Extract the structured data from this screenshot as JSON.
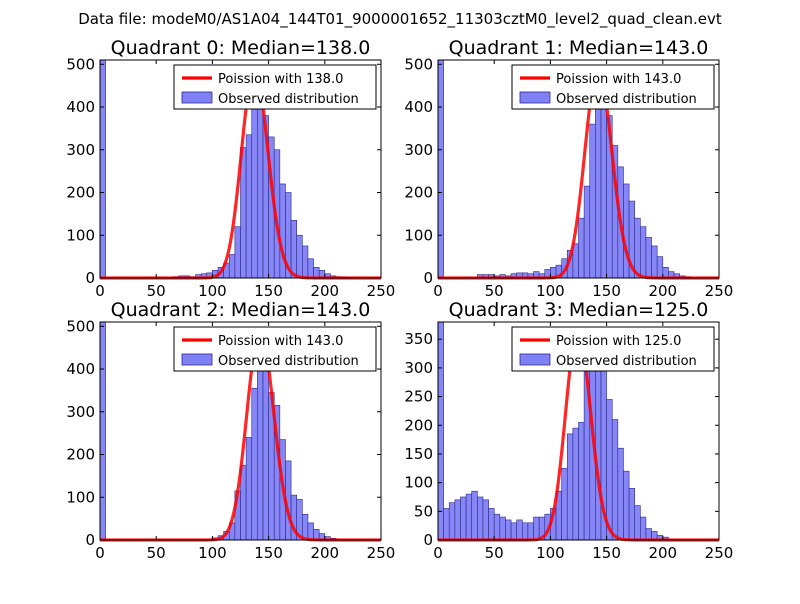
{
  "suptitle": "Data file: modeM0/AS1A04_144T01_9000001652_11303cztM0_level2_quad_clean.evt",
  "colors": {
    "bar_fill": "#8080f5",
    "bar_edge": "#2a2a8a",
    "poisson_line": "#ff0000",
    "legend_box": "#000000"
  },
  "chart_data": [
    {
      "type": "bar",
      "title": "Quadrant 0: Median=138.0",
      "xlim": [
        0,
        250
      ],
      "ylim": [
        0,
        510
      ],
      "xticks": [
        0,
        50,
        100,
        150,
        200,
        250
      ],
      "yticks": [
        0,
        100,
        200,
        300,
        400,
        500
      ],
      "legend": {
        "line_label": "Poission with 138.0",
        "bar_label": "Observed distribution",
        "placement": "upper-right"
      },
      "poisson_mean": 138.0,
      "poisson_peak": 490,
      "bin_width": 5,
      "bins": [
        {
          "x0": 0,
          "v": 510
        },
        {
          "x0": 65,
          "v": 3
        },
        {
          "x0": 70,
          "v": 5
        },
        {
          "x0": 75,
          "v": 5
        },
        {
          "x0": 80,
          "v": 3
        },
        {
          "x0": 85,
          "v": 8
        },
        {
          "x0": 90,
          "v": 10
        },
        {
          "x0": 95,
          "v": 12
        },
        {
          "x0": 100,
          "v": 18
        },
        {
          "x0": 105,
          "v": 25
        },
        {
          "x0": 110,
          "v": 35
        },
        {
          "x0": 115,
          "v": 55
        },
        {
          "x0": 120,
          "v": 120
        },
        {
          "x0": 125,
          "v": 305
        },
        {
          "x0": 130,
          "v": 335
        },
        {
          "x0": 135,
          "v": 440
        },
        {
          "x0": 140,
          "v": 395
        },
        {
          "x0": 145,
          "v": 380
        },
        {
          "x0": 150,
          "v": 330
        },
        {
          "x0": 155,
          "v": 300
        },
        {
          "x0": 160,
          "v": 220
        },
        {
          "x0": 165,
          "v": 200
        },
        {
          "x0": 170,
          "v": 135
        },
        {
          "x0": 175,
          "v": 100
        },
        {
          "x0": 180,
          "v": 75
        },
        {
          "x0": 185,
          "v": 45
        },
        {
          "x0": 190,
          "v": 25
        },
        {
          "x0": 195,
          "v": 18
        },
        {
          "x0": 200,
          "v": 10
        },
        {
          "x0": 205,
          "v": 5
        },
        {
          "x0": 210,
          "v": 3
        },
        {
          "x0": 215,
          "v": 2
        },
        {
          "x0": 220,
          "v": 1
        }
      ]
    },
    {
      "type": "bar",
      "title": "Quadrant 1: Median=143.0",
      "xlim": [
        0,
        250
      ],
      "ylim": [
        0,
        510
      ],
      "xticks": [
        0,
        50,
        100,
        150,
        200,
        250
      ],
      "yticks": [
        0,
        100,
        200,
        300,
        400,
        500
      ],
      "legend": {
        "line_label": "Poission with 143.0",
        "bar_label": "Observed distribution",
        "placement": "upper-right"
      },
      "poisson_mean": 143.0,
      "poisson_peak": 490,
      "bin_width": 5,
      "bins": [
        {
          "x0": 0,
          "v": 510
        },
        {
          "x0": 35,
          "v": 8
        },
        {
          "x0": 40,
          "v": 8
        },
        {
          "x0": 45,
          "v": 8
        },
        {
          "x0": 50,
          "v": 5
        },
        {
          "x0": 55,
          "v": 8
        },
        {
          "x0": 60,
          "v": 5
        },
        {
          "x0": 65,
          "v": 10
        },
        {
          "x0": 70,
          "v": 12
        },
        {
          "x0": 75,
          "v": 12
        },
        {
          "x0": 80,
          "v": 10
        },
        {
          "x0": 85,
          "v": 15
        },
        {
          "x0": 90,
          "v": 10
        },
        {
          "x0": 95,
          "v": 20
        },
        {
          "x0": 100,
          "v": 25
        },
        {
          "x0": 105,
          "v": 30
        },
        {
          "x0": 110,
          "v": 45
        },
        {
          "x0": 115,
          "v": 65
        },
        {
          "x0": 120,
          "v": 80
        },
        {
          "x0": 125,
          "v": 140
        },
        {
          "x0": 130,
          "v": 215
        },
        {
          "x0": 135,
          "v": 360
        },
        {
          "x0": 140,
          "v": 410
        },
        {
          "x0": 145,
          "v": 400
        },
        {
          "x0": 150,
          "v": 380
        },
        {
          "x0": 155,
          "v": 310
        },
        {
          "x0": 160,
          "v": 260
        },
        {
          "x0": 165,
          "v": 220
        },
        {
          "x0": 170,
          "v": 180
        },
        {
          "x0": 175,
          "v": 140
        },
        {
          "x0": 180,
          "v": 120
        },
        {
          "x0": 185,
          "v": 95
        },
        {
          "x0": 190,
          "v": 75
        },
        {
          "x0": 195,
          "v": 50
        },
        {
          "x0": 200,
          "v": 25
        },
        {
          "x0": 205,
          "v": 15
        },
        {
          "x0": 210,
          "v": 10
        },
        {
          "x0": 215,
          "v": 5
        },
        {
          "x0": 220,
          "v": 3
        }
      ]
    },
    {
      "type": "bar",
      "title": "Quadrant 2: Median=143.0",
      "xlim": [
        0,
        250
      ],
      "ylim": [
        0,
        510
      ],
      "xticks": [
        0,
        50,
        100,
        150,
        200,
        250
      ],
      "yticks": [
        0,
        100,
        200,
        300,
        400,
        500
      ],
      "legend": {
        "line_label": "Poission with 143.0",
        "bar_label": "Observed distribution",
        "placement": "upper-right"
      },
      "poisson_mean": 143.0,
      "poisson_peak": 490,
      "bin_width": 5,
      "bins": [
        {
          "x0": 0,
          "v": 510
        },
        {
          "x0": 100,
          "v": 5
        },
        {
          "x0": 105,
          "v": 10
        },
        {
          "x0": 110,
          "v": 20
        },
        {
          "x0": 115,
          "v": 40
        },
        {
          "x0": 120,
          "v": 115
        },
        {
          "x0": 125,
          "v": 175
        },
        {
          "x0": 130,
          "v": 240
        },
        {
          "x0": 135,
          "v": 355
        },
        {
          "x0": 140,
          "v": 420
        },
        {
          "x0": 145,
          "v": 460
        },
        {
          "x0": 150,
          "v": 345
        },
        {
          "x0": 155,
          "v": 315
        },
        {
          "x0": 160,
          "v": 235
        },
        {
          "x0": 165,
          "v": 185
        },
        {
          "x0": 170,
          "v": 105
        },
        {
          "x0": 175,
          "v": 95
        },
        {
          "x0": 180,
          "v": 60
        },
        {
          "x0": 185,
          "v": 40
        },
        {
          "x0": 190,
          "v": 25
        },
        {
          "x0": 195,
          "v": 15
        },
        {
          "x0": 200,
          "v": 8
        },
        {
          "x0": 205,
          "v": 4
        }
      ]
    },
    {
      "type": "bar",
      "title": "Quadrant 3: Median=125.0",
      "xlim": [
        0,
        250
      ],
      "ylim": [
        0,
        380
      ],
      "xticks": [
        0,
        50,
        100,
        150,
        200,
        250
      ],
      "yticks": [
        0,
        50,
        100,
        150,
        200,
        250,
        300,
        350
      ],
      "legend": {
        "line_label": "Poission with 125.0",
        "bar_label": "Observed distribution",
        "placement": "upper-right"
      },
      "poisson_mean": 125.0,
      "poisson_peak": 365,
      "bin_width": 5,
      "bins": [
        {
          "x0": 0,
          "v": 380
        },
        {
          "x0": 5,
          "v": 55
        },
        {
          "x0": 10,
          "v": 65
        },
        {
          "x0": 15,
          "v": 70
        },
        {
          "x0": 20,
          "v": 75
        },
        {
          "x0": 25,
          "v": 80
        },
        {
          "x0": 30,
          "v": 85
        },
        {
          "x0": 35,
          "v": 75
        },
        {
          "x0": 40,
          "v": 70
        },
        {
          "x0": 45,
          "v": 55
        },
        {
          "x0": 50,
          "v": 45
        },
        {
          "x0": 55,
          "v": 40
        },
        {
          "x0": 60,
          "v": 35
        },
        {
          "x0": 65,
          "v": 30
        },
        {
          "x0": 70,
          "v": 35
        },
        {
          "x0": 75,
          "v": 30
        },
        {
          "x0": 80,
          "v": 30
        },
        {
          "x0": 85,
          "v": 40
        },
        {
          "x0": 90,
          "v": 40
        },
        {
          "x0": 95,
          "v": 45
        },
        {
          "x0": 100,
          "v": 55
        },
        {
          "x0": 105,
          "v": 85
        },
        {
          "x0": 110,
          "v": 125
        },
        {
          "x0": 115,
          "v": 185
        },
        {
          "x0": 120,
          "v": 195
        },
        {
          "x0": 125,
          "v": 205
        },
        {
          "x0": 130,
          "v": 340
        },
        {
          "x0": 135,
          "v": 355
        },
        {
          "x0": 140,
          "v": 335
        },
        {
          "x0": 145,
          "v": 295
        },
        {
          "x0": 150,
          "v": 245
        },
        {
          "x0": 155,
          "v": 210
        },
        {
          "x0": 160,
          "v": 160
        },
        {
          "x0": 165,
          "v": 120
        },
        {
          "x0": 170,
          "v": 90
        },
        {
          "x0": 175,
          "v": 60
        },
        {
          "x0": 180,
          "v": 40
        },
        {
          "x0": 185,
          "v": 20
        },
        {
          "x0": 190,
          "v": 15
        },
        {
          "x0": 195,
          "v": 8
        },
        {
          "x0": 200,
          "v": 5
        }
      ]
    }
  ]
}
